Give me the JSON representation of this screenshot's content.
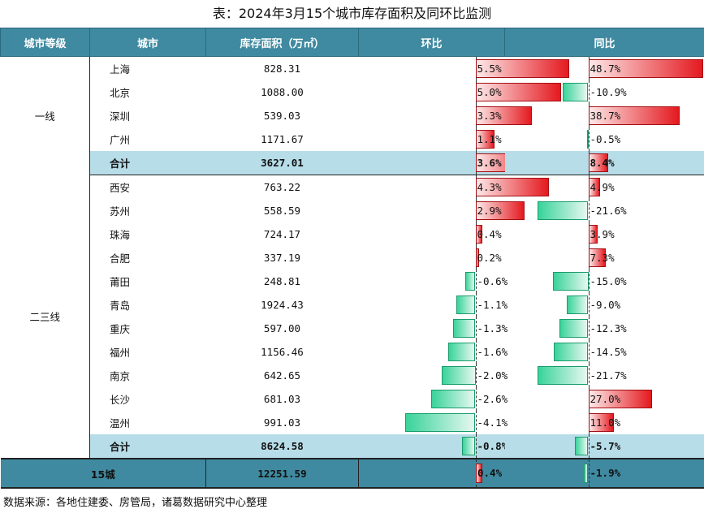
{
  "title": "表：2024年3月15个城市库存面积及同环比监测",
  "headers": {
    "tier": "城市等级",
    "city": "城市",
    "inventory": "库存面积（万㎡）",
    "mom": "环比",
    "yoy": "同比"
  },
  "groups": [
    {
      "tier": "一线",
      "rows": [
        {
          "city": "上海",
          "inventory": "828.31",
          "mom": 5.5,
          "mom_label": "5.5%",
          "yoy": 48.7,
          "yoy_label": "48.7%"
        },
        {
          "city": "北京",
          "inventory": "1088.00",
          "mom": 5.0,
          "mom_label": "5.0%",
          "yoy": -10.9,
          "yoy_label": "-10.9%"
        },
        {
          "city": "深圳",
          "inventory": "539.03",
          "mom": 3.3,
          "mom_label": "3.3%",
          "yoy": 38.7,
          "yoy_label": "38.7%"
        },
        {
          "city": "广州",
          "inventory": "1171.67",
          "mom": 1.1,
          "mom_label": "1.1%",
          "yoy": -0.5,
          "yoy_label": "-0.5%"
        }
      ],
      "subtotal": {
        "city": "合计",
        "inventory": "3627.01",
        "mom": 3.6,
        "mom_label": "3.6%",
        "yoy": 8.4,
        "yoy_label": "8.4%"
      }
    },
    {
      "tier": "二三线",
      "rows": [
        {
          "city": "西安",
          "inventory": "763.22",
          "mom": 4.3,
          "mom_label": "4.3%",
          "yoy": 4.9,
          "yoy_label": "4.9%"
        },
        {
          "city": "苏州",
          "inventory": "558.59",
          "mom": 2.9,
          "mom_label": "2.9%",
          "yoy": -21.6,
          "yoy_label": "-21.6%"
        },
        {
          "city": "珠海",
          "inventory": "724.17",
          "mom": 0.4,
          "mom_label": "0.4%",
          "yoy": 3.9,
          "yoy_label": "3.9%"
        },
        {
          "city": "合肥",
          "inventory": "337.19",
          "mom": 0.2,
          "mom_label": "0.2%",
          "yoy": 7.3,
          "yoy_label": "7.3%"
        },
        {
          "city": "莆田",
          "inventory": "248.81",
          "mom": -0.6,
          "mom_label": "-0.6%",
          "yoy": -15.0,
          "yoy_label": "-15.0%"
        },
        {
          "city": "青岛",
          "inventory": "1924.43",
          "mom": -1.1,
          "mom_label": "-1.1%",
          "yoy": -9.0,
          "yoy_label": "-9.0%"
        },
        {
          "city": "重庆",
          "inventory": "597.00",
          "mom": -1.3,
          "mom_label": "-1.3%",
          "yoy": -12.3,
          "yoy_label": "-12.3%"
        },
        {
          "city": "福州",
          "inventory": "1156.46",
          "mom": -1.6,
          "mom_label": "-1.6%",
          "yoy": -14.5,
          "yoy_label": "-14.5%"
        },
        {
          "city": "南京",
          "inventory": "642.65",
          "mom": -2.0,
          "mom_label": "-2.0%",
          "yoy": -21.7,
          "yoy_label": "-21.7%"
        },
        {
          "city": "长沙",
          "inventory": "681.03",
          "mom": -2.6,
          "mom_label": "-2.6%",
          "yoy": 27.0,
          "yoy_label": "27.0%"
        },
        {
          "city": "温州",
          "inventory": "991.03",
          "mom": -4.1,
          "mom_label": "-4.1%",
          "yoy": 11.0,
          "yoy_label": "11.0%"
        }
      ],
      "subtotal": {
        "city": "合计",
        "inventory": "8624.58",
        "mom": -0.8,
        "mom_label": "-0.8%",
        "yoy": -5.7,
        "yoy_label": "-5.7%"
      }
    }
  ],
  "total": {
    "label": "15城",
    "inventory": "12251.59",
    "mom": 0.4,
    "mom_label": "0.4%",
    "yoy": -1.9,
    "yoy_label": "-1.9%"
  },
  "source": "数据来源：各地住建委、房管局，诸葛数据研究中心整理",
  "colors": {
    "header_bg": "#3f8aa0",
    "subtotal_bg": "#b7dde8",
    "positive_bar": "#e4191f",
    "negative_bar": "#39d39a"
  }
}
